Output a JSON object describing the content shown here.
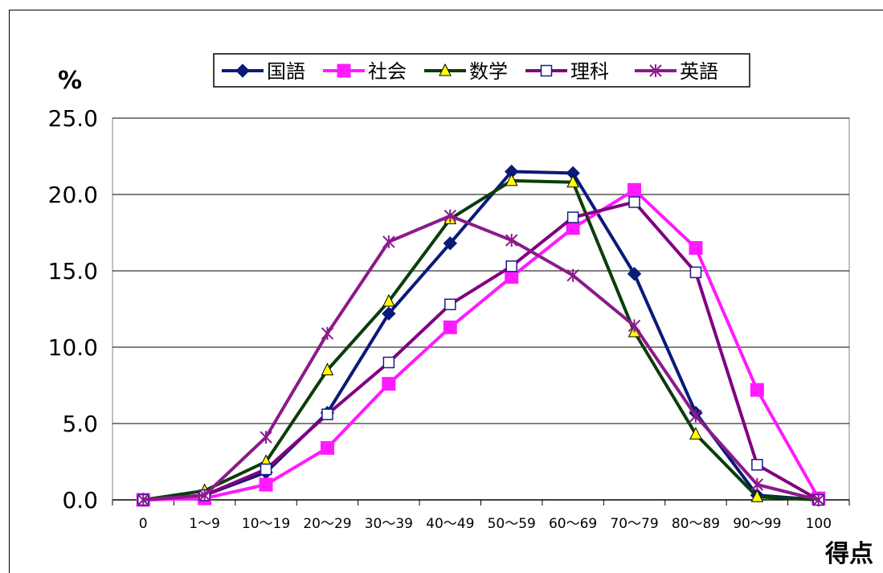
{
  "chart_data": {
    "type": "line",
    "title": "",
    "ylabel": "%",
    "xlabel": "得点",
    "ylim": [
      0,
      25
    ],
    "yticks": [
      "0.0",
      "5.0",
      "10.0",
      "15.0",
      "20.0",
      "25.0"
    ],
    "categories": [
      "0",
      "1～9",
      "10～19",
      "20～29",
      "30～39",
      "40～49",
      "50～59",
      "60～69",
      "70～79",
      "80～89",
      "90～99",
      "100"
    ],
    "grid": "horizontal",
    "legend_position": "top",
    "series": [
      {
        "name": "国語",
        "color": "#0a1a78",
        "marker": "diamond",
        "values": [
          0.0,
          0.3,
          1.8,
          5.7,
          12.2,
          16.8,
          21.5,
          21.4,
          14.8,
          5.7,
          0.3,
          0.0
        ]
      },
      {
        "name": "社会",
        "color": "#ff1aff",
        "marker": "square",
        "values": [
          0.0,
          0.1,
          1.0,
          3.4,
          7.6,
          11.3,
          14.6,
          17.8,
          20.3,
          16.5,
          7.2,
          0.1
        ]
      },
      {
        "name": "数学",
        "color": "#0a3d0a",
        "marker": "triangle",
        "values": [
          0.0,
          0.6,
          2.5,
          8.5,
          13.0,
          18.4,
          20.9,
          20.8,
          11.0,
          4.3,
          0.2,
          0.0
        ]
      },
      {
        "name": "理科",
        "color": "#800080",
        "marker": "open-square",
        "values": [
          0.0,
          0.3,
          2.0,
          5.6,
          9.0,
          12.8,
          15.3,
          18.5,
          19.5,
          14.9,
          2.3,
          0.0
        ]
      },
      {
        "name": "英語",
        "color": "#8b1a8b",
        "marker": "star",
        "values": [
          0.0,
          0.3,
          4.1,
          10.9,
          16.9,
          18.6,
          17.0,
          14.7,
          11.4,
          5.5,
          1.0,
          0.0
        ]
      }
    ]
  }
}
